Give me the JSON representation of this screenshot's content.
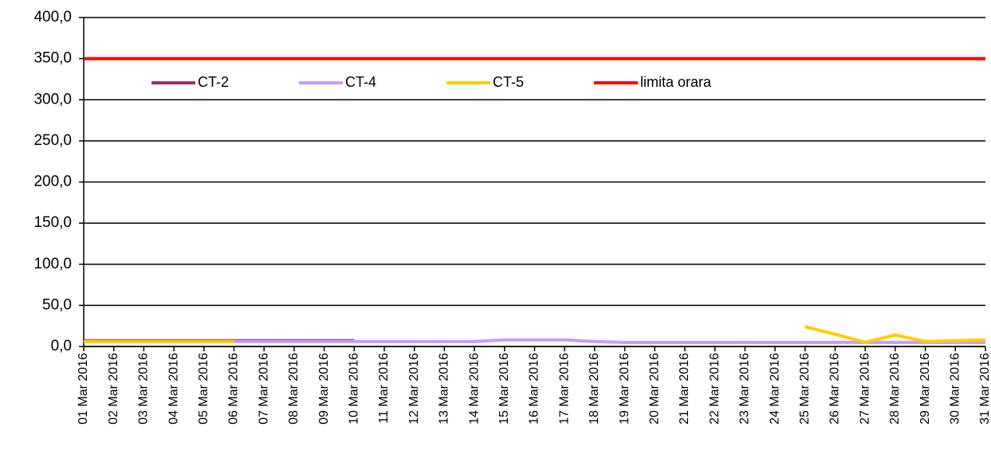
{
  "chart_data": {
    "type": "line",
    "categories": [
      "01 Mar 2016",
      "02 Mar 2016",
      "03 Mar 2016",
      "04 Mar 2016",
      "05 Mar 2016",
      "06 Mar 2016",
      "07 Mar 2016",
      "08 Mar 2016",
      "09 Mar 2016",
      "10 Mar 2016",
      "11 Mar 2016",
      "12 Mar 2016",
      "13 Mar 2016",
      "14 Mar 2016",
      "15 Mar 2016",
      "16 Mar 2016",
      "17 Mar 2016",
      "18 Mar 2016",
      "19 Mar 2016",
      "20 Mar 2016",
      "21 Mar 2016",
      "22 Mar 2016",
      "23 Mar 2016",
      "24 Mar 2016",
      "25 Mar 2016",
      "26 Mar 2016",
      "27 Mar 2016",
      "28 Mar 2016",
      "29 Mar 2016",
      "30 Mar 2016",
      "31 Mar 2016"
    ],
    "series": [
      {
        "name": "CT-2",
        "color": "#993366",
        "values": [
          7,
          7,
          7,
          7,
          7,
          7,
          7,
          7,
          7,
          7,
          null,
          null,
          null,
          null,
          null,
          null,
          null,
          null,
          null,
          null,
          null,
          null,
          null,
          null,
          null,
          null,
          null,
          null,
          null,
          null,
          null
        ]
      },
      {
        "name": "CT-4",
        "color": "#cc99ff",
        "values": [
          6,
          6,
          6,
          6,
          6,
          6,
          6,
          6,
          6,
          6,
          6,
          6,
          6,
          6,
          8,
          8,
          8,
          6,
          5,
          5,
          5,
          5,
          5,
          5,
          5,
          5,
          5,
          5,
          5,
          5,
          5
        ]
      },
      {
        "name": "CT-5",
        "color": "#ffcc00",
        "values": [
          6,
          6,
          6,
          6,
          6,
          6,
          null,
          null,
          null,
          null,
          null,
          null,
          null,
          null,
          null,
          null,
          null,
          null,
          null,
          null,
          null,
          null,
          null,
          null,
          24,
          15,
          5,
          14,
          6,
          7,
          8
        ]
      },
      {
        "name": "limita orara",
        "color": "#ff0000",
        "values": [
          350,
          350,
          350,
          350,
          350,
          350,
          350,
          350,
          350,
          350,
          350,
          350,
          350,
          350,
          350,
          350,
          350,
          350,
          350,
          350,
          350,
          350,
          350,
          350,
          350,
          350,
          350,
          350,
          350,
          350,
          350
        ]
      }
    ],
    "ylim": [
      0,
      400
    ],
    "yticks": [
      {
        "value": 0,
        "label": "0,0"
      },
      {
        "value": 50,
        "label": "50,0"
      },
      {
        "value": 100,
        "label": "100,0"
      },
      {
        "value": 150,
        "label": "150,0"
      },
      {
        "value": 200,
        "label": "200,0"
      },
      {
        "value": 250,
        "label": "250,0"
      },
      {
        "value": 300,
        "label": "300,0"
      },
      {
        "value": 350,
        "label": "350,0"
      },
      {
        "value": 400,
        "label": "400,0"
      }
    ],
    "grid": true
  }
}
